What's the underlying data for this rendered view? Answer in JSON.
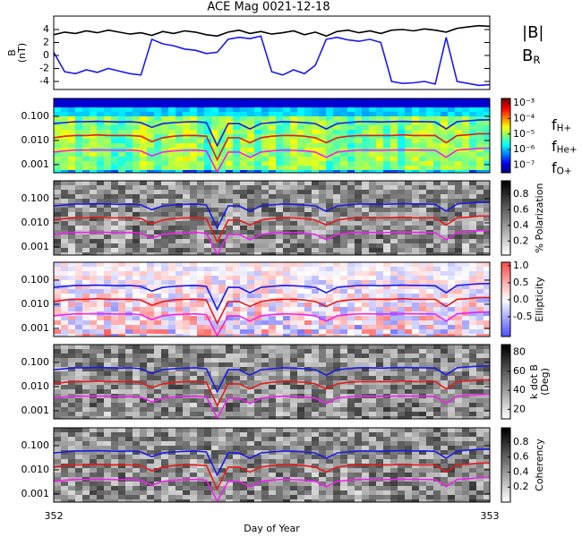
{
  "chart_data": [
    {
      "type": "line",
      "title": "ACE Mag 0021-12-18",
      "ylabel": [
        "B",
        "(nT)"
      ],
      "x": [
        352.0,
        352.025,
        352.05,
        352.075,
        352.1,
        352.125,
        352.15,
        352.175,
        352.2,
        352.225,
        352.25,
        352.275,
        352.3,
        352.325,
        352.35,
        352.375,
        352.4,
        352.425,
        352.45,
        352.475,
        352.5,
        352.525,
        352.55,
        352.575,
        352.6,
        352.625,
        352.65,
        352.675,
        352.7,
        352.725,
        352.75,
        352.775,
        352.8,
        352.825,
        352.85,
        352.875,
        352.9,
        352.925,
        352.95,
        352.975,
        353.0
      ],
      "xlim": [
        352,
        353
      ],
      "ylim": [
        -5.24,
        6.07
      ],
      "yticks": [
        4,
        2,
        0,
        -2,
        -4
      ],
      "series": [
        {
          "name": "|B|",
          "color": "#000000",
          "values": [
            3.2,
            3.6,
            3.4,
            3.8,
            3.5,
            3.9,
            3.6,
            3.3,
            3.5,
            3.1,
            3.7,
            3.4,
            3.8,
            3.6,
            3.2,
            3.0,
            3.6,
            3.9,
            3.4,
            3.7,
            3.3,
            3.5,
            3.8,
            3.2,
            3.6,
            3.0,
            3.7,
            3.9,
            3.5,
            3.8,
            3.4,
            3.9,
            4.0,
            3.8,
            4.1,
            3.9,
            3.6,
            4.2,
            4.4,
            4.6,
            4.5
          ]
        },
        {
          "name": "BR",
          "color": "#1a1ae6",
          "values": [
            0.5,
            -2.5,
            -2.8,
            -2.2,
            -2.6,
            -2.0,
            -2.4,
            -2.8,
            -3.0,
            2.5,
            1.8,
            1.5,
            1.0,
            0.8,
            0.3,
            0.5,
            2.5,
            2.8,
            2.6,
            3.0,
            -2.5,
            -3.0,
            -2.2,
            -2.8,
            -1.5,
            2.5,
            2.8,
            2.4,
            2.2,
            2.5,
            2.0,
            -4.0,
            -4.3,
            -4.2,
            -4.0,
            -4.4,
            2.8,
            -4.0,
            -4.3,
            -4.6,
            -4.5
          ]
        }
      ]
    },
    {
      "type": "spectrogram",
      "xlabel": "Day of Year",
      "x": [
        352.0,
        352.025,
        352.05,
        352.075,
        352.1,
        352.125,
        352.15,
        352.175,
        352.2,
        352.225,
        352.25,
        352.275,
        352.3,
        352.325,
        352.35,
        352.375,
        352.4,
        352.425,
        352.45,
        352.475,
        352.5,
        352.525,
        352.55,
        352.575,
        352.6,
        352.625,
        352.65,
        352.675,
        352.7,
        352.725,
        352.75,
        352.775,
        352.8,
        352.825,
        352.85,
        352.875,
        352.9,
        352.925,
        352.95,
        352.975,
        353.0
      ],
      "xlim": [
        352,
        353
      ],
      "xticks": [
        352,
        353
      ],
      "log_y": true,
      "ylim": [
        0.00046,
        0.55
      ],
      "yticks": [
        {
          "value": 0.1,
          "label": "0.100"
        },
        {
          "value": 0.01,
          "label": "0.010"
        },
        0.001
      ],
      "series": [
        {
          "name": "fH+",
          "color": "#1a1ae6",
          "values": [
            0.05,
            0.055,
            0.06,
            0.06,
            0.062,
            0.06,
            0.058,
            0.06,
            0.055,
            0.035,
            0.05,
            0.055,
            0.058,
            0.06,
            0.055,
            0.006,
            0.05,
            0.05,
            0.03,
            0.05,
            0.055,
            0.06,
            0.058,
            0.055,
            0.05,
            0.03,
            0.05,
            0.055,
            0.06,
            0.06,
            0.058,
            0.06,
            0.062,
            0.06,
            0.06,
            0.058,
            0.03,
            0.06,
            0.065,
            0.07,
            0.072
          ]
        },
        {
          "name": "fHe+",
          "color": "#e61a1a",
          "values": [
            0.013,
            0.015,
            0.016,
            0.016,
            0.017,
            0.016,
            0.016,
            0.016,
            0.015,
            0.009,
            0.013,
            0.015,
            0.016,
            0.016,
            0.015,
            0.0016,
            0.013,
            0.013,
            0.008,
            0.013,
            0.015,
            0.016,
            0.016,
            0.015,
            0.013,
            0.008,
            0.013,
            0.015,
            0.016,
            0.016,
            0.016,
            0.016,
            0.017,
            0.016,
            0.016,
            0.016,
            0.008,
            0.016,
            0.017,
            0.019,
            0.019
          ]
        },
        {
          "name": "fO+",
          "color": "#ee22ee",
          "values": [
            0.0033,
            0.0037,
            0.004,
            0.004,
            0.0041,
            0.004,
            0.0039,
            0.004,
            0.0037,
            0.0023,
            0.0033,
            0.0037,
            0.0039,
            0.004,
            0.0037,
            0.0005,
            0.0033,
            0.0033,
            0.002,
            0.0033,
            0.0037,
            0.004,
            0.0039,
            0.0037,
            0.0033,
            0.002,
            0.0033,
            0.0037,
            0.004,
            0.004,
            0.0039,
            0.004,
            0.0041,
            0.004,
            0.004,
            0.0039,
            0.002,
            0.004,
            0.0043,
            0.0047,
            0.0048
          ]
        }
      ],
      "panels": [
        {
          "colormap": "jet",
          "zlim": [
            -7.5,
            -2.7
          ],
          "zticks": [
            {
              "value": -3,
              "label": "10⁻³"
            },
            {
              "value": -4,
              "label": "10⁻⁴"
            },
            {
              "value": -5,
              "label": "10⁻⁵"
            },
            {
              "value": -6,
              "label": "10⁻⁶"
            },
            {
              "value": -7,
              "label": "10⁻⁷"
            }
          ]
        },
        {
          "colormap": "gray",
          "zlabel": [
            "% Polarization"
          ],
          "zlim": [
            0.02,
            0.97
          ],
          "zticks": [
            0.8,
            0.6,
            0.4,
            0.2
          ]
        },
        {
          "colormap": "bwr",
          "zlabel": [
            "Ellipticity"
          ],
          "zlim": [
            -1.08,
            1.1
          ],
          "zticks": [
            {
              "value": 1,
              "label": "1.0"
            },
            0.5,
            {
              "value": 0,
              "label": "0.0"
            },
            -0.5
          ]
        },
        {
          "colormap": "gray",
          "zlabel": [
            "k dot B",
            "(Deg)"
          ],
          "zlim": [
            10,
            88
          ],
          "zticks": [
            80,
            60,
            40,
            20
          ]
        },
        {
          "colormap": "gray",
          "zlabel": [
            "Coherency"
          ],
          "zlim": [
            0,
            0.99
          ],
          "zticks": [
            0.8,
            0.6,
            0.4,
            0.2
          ]
        }
      ]
    }
  ]
}
